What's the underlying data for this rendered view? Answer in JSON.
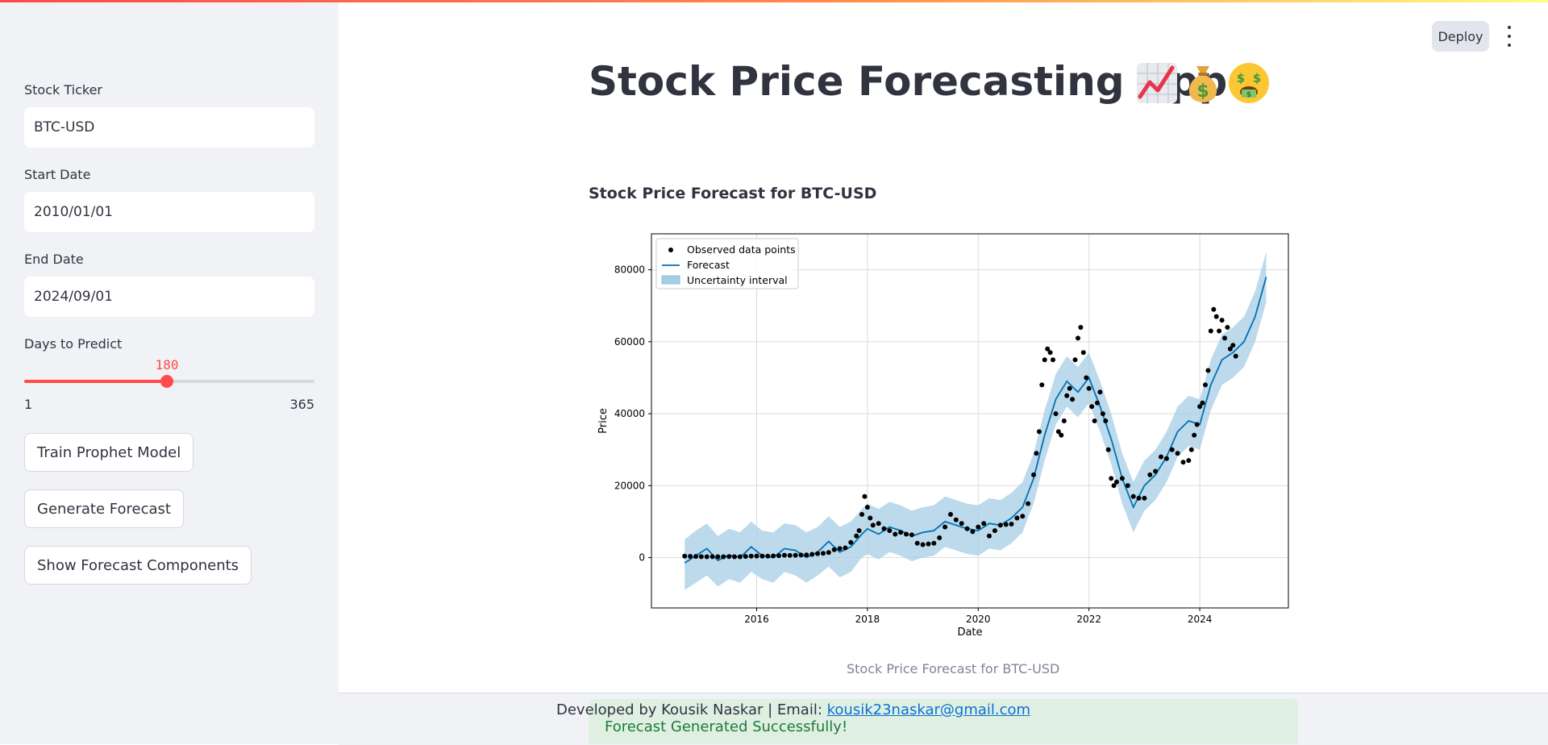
{
  "sidebar": {
    "ticker_label": "Stock Ticker",
    "ticker_value": "BTC-USD",
    "start_label": "Start Date",
    "start_value": "2010/01/01",
    "end_label": "End Date",
    "end_value": "2024/09/01",
    "days_label": "Days to Predict",
    "slider": {
      "value": "180",
      "min": "1",
      "max": "365",
      "fraction": 0.4918
    },
    "buttons": {
      "train": "Train Prophet Model",
      "generate": "Generate Forecast",
      "components": "Show Forecast Components"
    }
  },
  "header": {
    "deploy_label": "Deploy",
    "menu_icon": "more-vertical-icon"
  },
  "main": {
    "title": "Stock Price Forecasting App",
    "title_icons": [
      "chart-increasing-icon",
      "money-bag-icon",
      "money-mouth-face-icon"
    ],
    "subheader": "Stock Price Forecast for BTC-USD",
    "caption": "Stock Price Forecast for BTC-USD"
  },
  "footer": {
    "credit_prefix": "Developed by Kousik Naskar | Email: ",
    "email": "kousik23naskar@gmail.com",
    "success_message": "Forecast Generated Successfully!"
  },
  "colors": {
    "accent": "#ff4b4b",
    "forecast_line": "#0072b2",
    "uncertainty": "#a6cde6",
    "observed": "#000000",
    "success_bg": "#dff0e3",
    "success_text": "#1d7a36"
  },
  "chart_data": {
    "type": "line",
    "title": "",
    "xlabel": "Date",
    "ylabel": "Price",
    "x_ticks": [
      "2016",
      "2018",
      "2020",
      "2022",
      "2024"
    ],
    "y_ticks": [
      "0",
      "20000",
      "40000",
      "60000",
      "80000"
    ],
    "xlim": [
      2014.1,
      2025.6
    ],
    "ylim": [
      -14000,
      90000
    ],
    "grid": true,
    "legend": {
      "position": "top-left",
      "entries": [
        "Observed data points",
        "Forecast",
        "Uncertainty interval"
      ]
    },
    "forecast": {
      "x": [
        2014.7,
        2014.9,
        2015.1,
        2015.3,
        2015.5,
        2015.7,
        2015.9,
        2016.1,
        2016.3,
        2016.5,
        2016.7,
        2016.9,
        2017.1,
        2017.3,
        2017.5,
        2017.7,
        2017.9,
        2018.0,
        2018.2,
        2018.4,
        2018.6,
        2018.8,
        2019.0,
        2019.2,
        2019.4,
        2019.6,
        2019.8,
        2020.0,
        2020.2,
        2020.4,
        2020.6,
        2020.8,
        2021.0,
        2021.2,
        2021.4,
        2021.6,
        2021.8,
        2022.0,
        2022.2,
        2022.4,
        2022.6,
        2022.8,
        2023.0,
        2023.2,
        2023.4,
        2023.6,
        2023.8,
        2024.0,
        2024.2,
        2024.4,
        2024.6,
        2024.8,
        2025.0,
        2025.2
      ],
      "y": [
        -1500,
        500,
        2500,
        -800,
        700,
        0,
        3000,
        500,
        0,
        2500,
        2000,
        0,
        1500,
        4500,
        1500,
        3000,
        6500,
        8000,
        6500,
        8500,
        7500,
        6000,
        7000,
        7500,
        10000,
        9000,
        8000,
        7500,
        9500,
        9000,
        11000,
        14000,
        22000,
        34000,
        44000,
        49000,
        46000,
        50000,
        42000,
        33000,
        22000,
        14000,
        20000,
        23000,
        28000,
        35000,
        38000,
        37000,
        48000,
        55000,
        57000,
        60000,
        67000,
        78000
      ],
      "lower": [
        -9000,
        -7000,
        -5000,
        -8000,
        -6000,
        -7000,
        -4000,
        -6000,
        -7000,
        -4000,
        -5000,
        -7000,
        -5000,
        -2500,
        -5500,
        -4000,
        0,
        1000,
        -500,
        1500,
        500,
        -1000,
        0,
        500,
        3000,
        2000,
        1000,
        500,
        2500,
        2000,
        4000,
        7000,
        15000,
        27000,
        37000,
        42000,
        39000,
        43000,
        35000,
        26000,
        15000,
        7000,
        13000,
        16000,
        21000,
        28000,
        31000,
        30000,
        41000,
        48000,
        50000,
        53000,
        60000,
        71000
      ],
      "upper": [
        5000,
        7500,
        9500,
        6000,
        8000,
        7000,
        10000,
        7500,
        7000,
        9500,
        9000,
        7000,
        8500,
        11500,
        8500,
        10000,
        13500,
        15000,
        13500,
        15500,
        14500,
        13000,
        14000,
        14500,
        17000,
        16000,
        15000,
        14500,
        16500,
        16000,
        18000,
        21000,
        29000,
        41000,
        51000,
        56000,
        53000,
        57000,
        49000,
        40000,
        29000,
        21000,
        27000,
        30000,
        35000,
        42000,
        45000,
        44000,
        55000,
        62000,
        64000,
        67000,
        74000,
        85000
      ]
    },
    "observed": {
      "x": [
        2014.7,
        2014.8,
        2014.9,
        2015.0,
        2015.1,
        2015.2,
        2015.3,
        2015.4,
        2015.5,
        2015.6,
        2015.7,
        2015.8,
        2015.9,
        2016.0,
        2016.1,
        2016.2,
        2016.3,
        2016.4,
        2016.5,
        2016.6,
        2016.7,
        2016.8,
        2016.9,
        2017.0,
        2017.1,
        2017.2,
        2017.3,
        2017.4,
        2017.5,
        2017.6,
        2017.7,
        2017.8,
        2017.85,
        2017.9,
        2017.95,
        2018.0,
        2018.05,
        2018.1,
        2018.2,
        2018.3,
        2018.4,
        2018.5,
        2018.6,
        2018.7,
        2018.8,
        2018.9,
        2019.0,
        2019.1,
        2019.2,
        2019.3,
        2019.4,
        2019.5,
        2019.6,
        2019.7,
        2019.8,
        2019.9,
        2020.0,
        2020.1,
        2020.2,
        2020.3,
        2020.4,
        2020.5,
        2020.6,
        2020.7,
        2020.8,
        2020.9,
        2021.0,
        2021.05,
        2021.1,
        2021.15,
        2021.2,
        2021.25,
        2021.3,
        2021.35,
        2021.4,
        2021.45,
        2021.5,
        2021.55,
        2021.6,
        2021.65,
        2021.7,
        2021.75,
        2021.8,
        2021.85,
        2021.9,
        2021.95,
        2022.0,
        2022.05,
        2022.1,
        2022.15,
        2022.2,
        2022.25,
        2022.3,
        2022.35,
        2022.4,
        2022.45,
        2022.5,
        2022.6,
        2022.7,
        2022.8,
        2022.9,
        2023.0,
        2023.1,
        2023.2,
        2023.3,
        2023.4,
        2023.5,
        2023.6,
        2023.7,
        2023.8,
        2023.85,
        2023.9,
        2023.95,
        2024.0,
        2024.05,
        2024.1,
        2024.15,
        2024.2,
        2024.25,
        2024.3,
        2024.35,
        2024.4,
        2024.45,
        2024.5,
        2024.55,
        2024.6,
        2024.65
      ],
      "y": [
        400,
        350,
        330,
        250,
        240,
        260,
        230,
        240,
        270,
        230,
        240,
        320,
        380,
        430,
        400,
        420,
        450,
        530,
        650,
        600,
        610,
        700,
        740,
        900,
        1100,
        1200,
        1400,
        2200,
        2500,
        2700,
        4200,
        6000,
        7500,
        12000,
        17000,
        14000,
        11000,
        9000,
        9500,
        8000,
        7500,
        6500,
        7000,
        6500,
        6300,
        4000,
        3600,
        3800,
        4000,
        5500,
        8500,
        12000,
        10500,
        9500,
        8000,
        7200,
        8500,
        9500,
        6000,
        7500,
        9000,
        9200,
        9300,
        11000,
        11500,
        15000,
        23000,
        29000,
        35000,
        48000,
        55000,
        58000,
        57000,
        55000,
        40000,
        35000,
        34000,
        38000,
        45000,
        47000,
        44000,
        55000,
        61000,
        64000,
        57000,
        50000,
        47000,
        42000,
        38000,
        43000,
        46000,
        40000,
        38000,
        30000,
        22000,
        20000,
        21000,
        22000,
        20000,
        17000,
        16500,
        16500,
        23000,
        24000,
        28000,
        27500,
        30000,
        29000,
        26500,
        27000,
        30000,
        34000,
        37000,
        42000,
        43000,
        48000,
        52000,
        63000,
        69000,
        67000,
        63000,
        66000,
        61000,
        64000,
        58000,
        59000,
        56000
      ]
    }
  }
}
